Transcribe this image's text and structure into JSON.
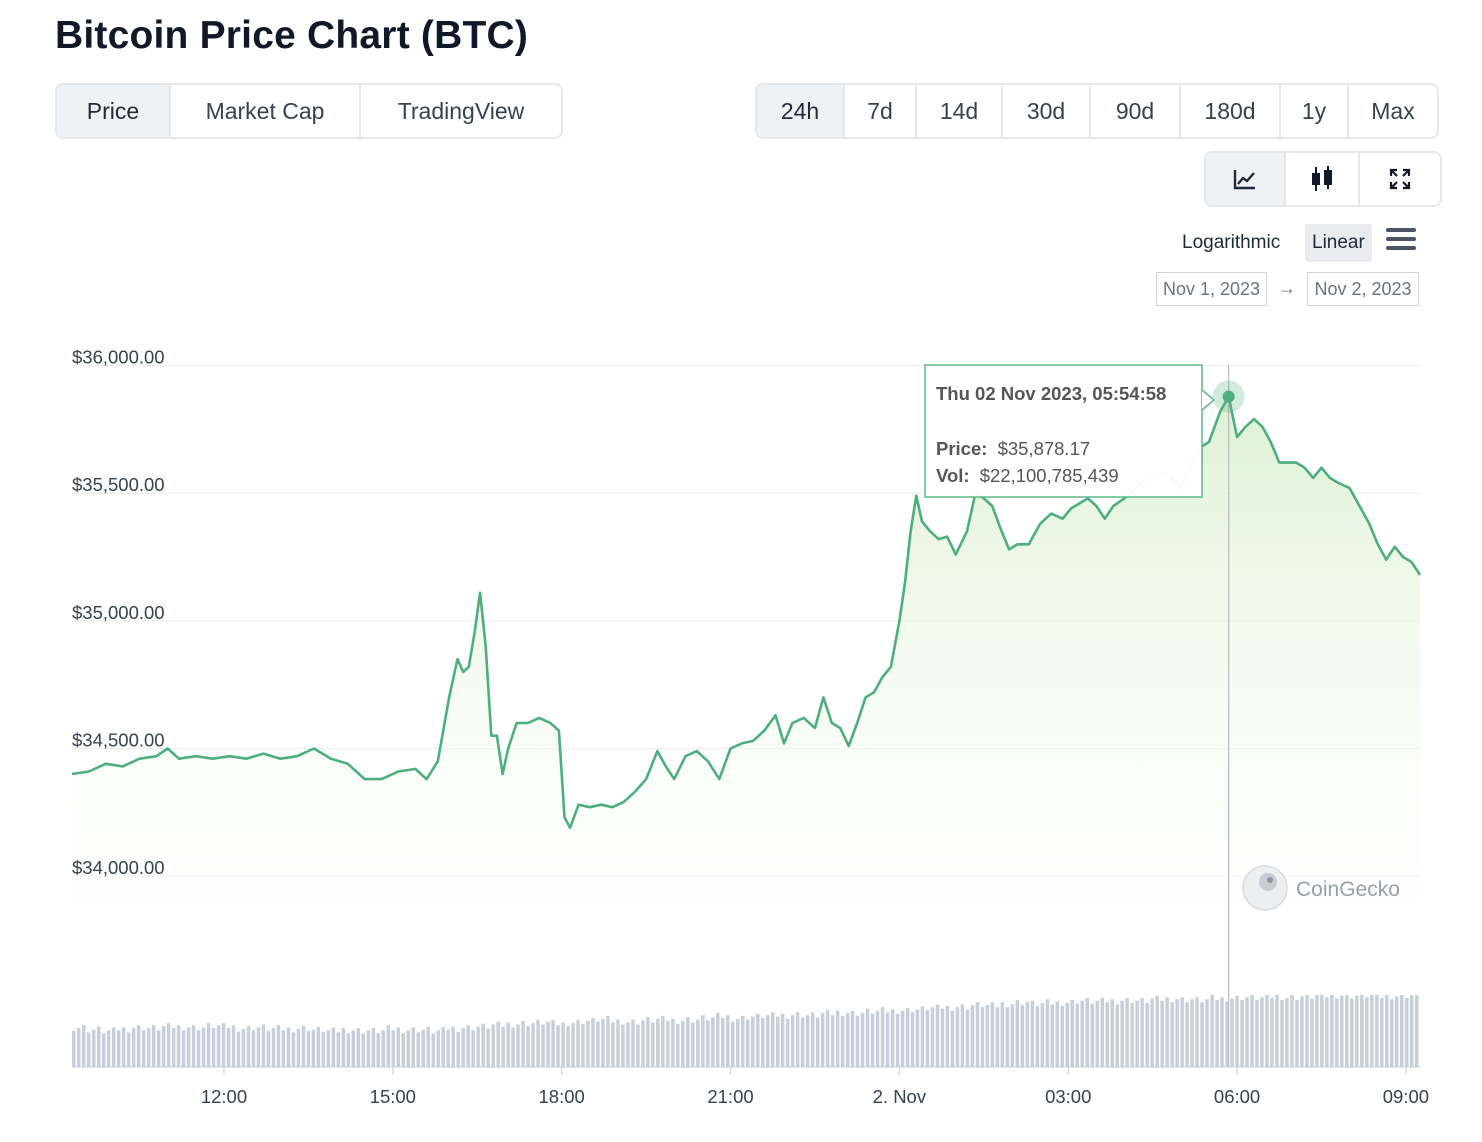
{
  "page_title": "Bitcoin Price Chart (BTC)",
  "view_tabs": [
    {
      "label": "Price",
      "active": true
    },
    {
      "label": "Market Cap",
      "active": false
    },
    {
      "label": "TradingView",
      "active": false
    }
  ],
  "range_tabs": [
    {
      "label": "24h",
      "active": true
    },
    {
      "label": "7d",
      "active": false
    },
    {
      "label": "14d",
      "active": false
    },
    {
      "label": "30d",
      "active": false
    },
    {
      "label": "90d",
      "active": false
    },
    {
      "label": "180d",
      "active": false
    },
    {
      "label": "1y",
      "active": false
    },
    {
      "label": "Max",
      "active": false
    }
  ],
  "mode_tabs": [
    {
      "icon": "line-chart-icon",
      "active": true
    },
    {
      "icon": "candlestick-icon",
      "active": false
    },
    {
      "icon": "expand-icon",
      "active": false
    }
  ],
  "scale": {
    "logarithmic_label": "Logarithmic",
    "linear_label": "Linear",
    "selected": "Linear"
  },
  "date_range": {
    "from": "Nov 1, 2023",
    "arrow": "→",
    "to": "Nov 2, 2023"
  },
  "tooltip": {
    "date": "Thu 02 Nov 2023, 05:54:58",
    "price_label": "Price:",
    "price_value": "$35,878.17",
    "vol_label": "Vol:",
    "vol_value": "$22,100,785,439"
  },
  "watermark": "CoinGecko",
  "colors": {
    "line": "#4caf7d",
    "fill": "#e3f2dc",
    "volume": "#c8cedb",
    "grid": "#ececec",
    "axis_text": "#374151"
  },
  "chart_data": {
    "type": "area",
    "title": "",
    "xlabel": "",
    "ylabel": "",
    "x_range_hours": [
      9.3,
      33.25
    ],
    "ylim": [
      33750,
      36100
    ],
    "x_ticks": [
      {
        "label": "12:00",
        "hour": 12
      },
      {
        "label": "15:00",
        "hour": 15
      },
      {
        "label": "18:00",
        "hour": 18
      },
      {
        "label": "21:00",
        "hour": 21
      },
      {
        "label": "2. Nov",
        "hour": 24
      },
      {
        "label": "03:00",
        "hour": 27
      },
      {
        "label": "06:00",
        "hour": 30
      },
      {
        "label": "09:00",
        "hour": 33
      }
    ],
    "y_ticks": [
      {
        "label": "$36,000.00",
        "value": 36000
      },
      {
        "label": "$35,500.00",
        "value": 35500
      },
      {
        "label": "$35,000.00",
        "value": 35000
      },
      {
        "label": "$34,500.00",
        "value": 34500
      },
      {
        "label": "$34,000.00",
        "value": 34000
      }
    ],
    "price_series": {
      "name": "Price",
      "points": [
        [
          9.3,
          34400
        ],
        [
          9.6,
          34410
        ],
        [
          9.9,
          34440
        ],
        [
          10.2,
          34430
        ],
        [
          10.5,
          34460
        ],
        [
          10.8,
          34470
        ],
        [
          11.0,
          34500
        ],
        [
          11.2,
          34460
        ],
        [
          11.5,
          34470
        ],
        [
          11.8,
          34460
        ],
        [
          12.1,
          34470
        ],
        [
          12.4,
          34460
        ],
        [
          12.7,
          34480
        ],
        [
          13.0,
          34460
        ],
        [
          13.3,
          34470
        ],
        [
          13.6,
          34500
        ],
        [
          13.9,
          34460
        ],
        [
          14.2,
          34440
        ],
        [
          14.5,
          34380
        ],
        [
          14.8,
          34380
        ],
        [
          15.1,
          34410
        ],
        [
          15.4,
          34420
        ],
        [
          15.6,
          34380
        ],
        [
          15.8,
          34450
        ],
        [
          16.0,
          34700
        ],
        [
          16.15,
          34850
        ],
        [
          16.25,
          34800
        ],
        [
          16.35,
          34820
        ],
        [
          16.45,
          34950
        ],
        [
          16.55,
          35110
        ],
        [
          16.65,
          34900
        ],
        [
          16.75,
          34550
        ],
        [
          16.85,
          34550
        ],
        [
          16.95,
          34400
        ],
        [
          17.05,
          34500
        ],
        [
          17.2,
          34600
        ],
        [
          17.4,
          34600
        ],
        [
          17.6,
          34620
        ],
        [
          17.8,
          34600
        ],
        [
          17.95,
          34570
        ],
        [
          18.05,
          34230
        ],
        [
          18.15,
          34190
        ],
        [
          18.3,
          34280
        ],
        [
          18.5,
          34270
        ],
        [
          18.7,
          34280
        ],
        [
          18.9,
          34270
        ],
        [
          19.1,
          34290
        ],
        [
          19.3,
          34330
        ],
        [
          19.5,
          34380
        ],
        [
          19.7,
          34490
        ],
        [
          19.85,
          34430
        ],
        [
          20.0,
          34380
        ],
        [
          20.2,
          34470
        ],
        [
          20.4,
          34490
        ],
        [
          20.6,
          34450
        ],
        [
          20.8,
          34380
        ],
        [
          21.0,
          34500
        ],
        [
          21.2,
          34520
        ],
        [
          21.4,
          34530
        ],
        [
          21.6,
          34570
        ],
        [
          21.8,
          34630
        ],
        [
          21.95,
          34520
        ],
        [
          22.1,
          34600
        ],
        [
          22.3,
          34620
        ],
        [
          22.5,
          34580
        ],
        [
          22.65,
          34700
        ],
        [
          22.8,
          34600
        ],
        [
          22.95,
          34580
        ],
        [
          23.1,
          34510
        ],
        [
          23.25,
          34600
        ],
        [
          23.4,
          34700
        ],
        [
          23.55,
          34720
        ],
        [
          23.7,
          34780
        ],
        [
          23.85,
          34820
        ],
        [
          24.0,
          35000
        ],
        [
          24.1,
          35150
        ],
        [
          24.2,
          35350
        ],
        [
          24.3,
          35490
        ],
        [
          24.4,
          35390
        ],
        [
          24.55,
          35350
        ],
        [
          24.7,
          35320
        ],
        [
          24.85,
          35330
        ],
        [
          25.0,
          35260
        ],
        [
          25.2,
          35350
        ],
        [
          25.35,
          35500
        ],
        [
          25.5,
          35480
        ],
        [
          25.65,
          35450
        ],
        [
          25.8,
          35360
        ],
        [
          25.95,
          35280
        ],
        [
          26.1,
          35300
        ],
        [
          26.3,
          35300
        ],
        [
          26.5,
          35380
        ],
        [
          26.7,
          35420
        ],
        [
          26.9,
          35400
        ],
        [
          27.05,
          35440
        ],
        [
          27.2,
          35460
        ],
        [
          27.35,
          35480
        ],
        [
          27.5,
          35450
        ],
        [
          27.65,
          35400
        ],
        [
          27.8,
          35450
        ],
        [
          28.0,
          35480
        ],
        [
          28.2,
          35520
        ],
        [
          28.4,
          35560
        ],
        [
          28.6,
          35580
        ],
        [
          28.8,
          35570
        ],
        [
          29.0,
          35520
        ],
        [
          29.2,
          35620
        ],
        [
          29.35,
          35680
        ],
        [
          29.5,
          35700
        ],
        [
          29.6,
          35760
        ],
        [
          29.7,
          35820
        ],
        [
          29.85,
          35878
        ],
        [
          30.0,
          35720
        ],
        [
          30.15,
          35760
        ],
        [
          30.3,
          35790
        ],
        [
          30.45,
          35760
        ],
        [
          30.6,
          35700
        ],
        [
          30.75,
          35620
        ],
        [
          30.9,
          35620
        ],
        [
          31.05,
          35620
        ],
        [
          31.2,
          35600
        ],
        [
          31.35,
          35560
        ],
        [
          31.5,
          35600
        ],
        [
          31.65,
          35560
        ],
        [
          31.8,
          35540
        ],
        [
          32.0,
          35520
        ],
        [
          32.2,
          35440
        ],
        [
          32.35,
          35380
        ],
        [
          32.5,
          35300
        ],
        [
          32.65,
          35240
        ],
        [
          32.8,
          35290
        ],
        [
          32.95,
          35250
        ],
        [
          33.1,
          35230
        ],
        [
          33.25,
          35180
        ]
      ]
    },
    "volume_series": {
      "name": "Volume",
      "relative_values": [
        0.55,
        0.52,
        0.5,
        0.53,
        0.55,
        0.54,
        0.56,
        0.56,
        0.55,
        0.57,
        0.56,
        0.54,
        0.55,
        0.53,
        0.53,
        0.54,
        0.52,
        0.5,
        0.52,
        0.51,
        0.5,
        0.53,
        0.52,
        0.52,
        0.5,
        0.54,
        0.55,
        0.56,
        0.58,
        0.6,
        0.61,
        0.62,
        0.6,
        0.62,
        0.64,
        0.66,
        0.64,
        0.63,
        0.65,
        0.66,
        0.65,
        0.66,
        0.68,
        0.7,
        0.68,
        0.7,
        0.71,
        0.72,
        0.73,
        0.72,
        0.74,
        0.76,
        0.75,
        0.77,
        0.78,
        0.79,
        0.8,
        0.82,
        0.83,
        0.84,
        0.86,
        0.85,
        0.88,
        0.9,
        0.88,
        0.89,
        0.9,
        0.92,
        0.91,
        0.92,
        0.93,
        0.92,
        0.94,
        0.95,
        0.94,
        0.93,
        0.95,
        0.96,
        0.97,
        0.96,
        0.98,
        0.97,
        0.98,
        0.99,
        1.0,
        0.99,
        1.0,
        0.98,
        0.99,
        1.0
      ]
    },
    "hover_point": {
      "hour": 29.85,
      "price": 35878.17
    },
    "grid": true,
    "legend": "none"
  }
}
